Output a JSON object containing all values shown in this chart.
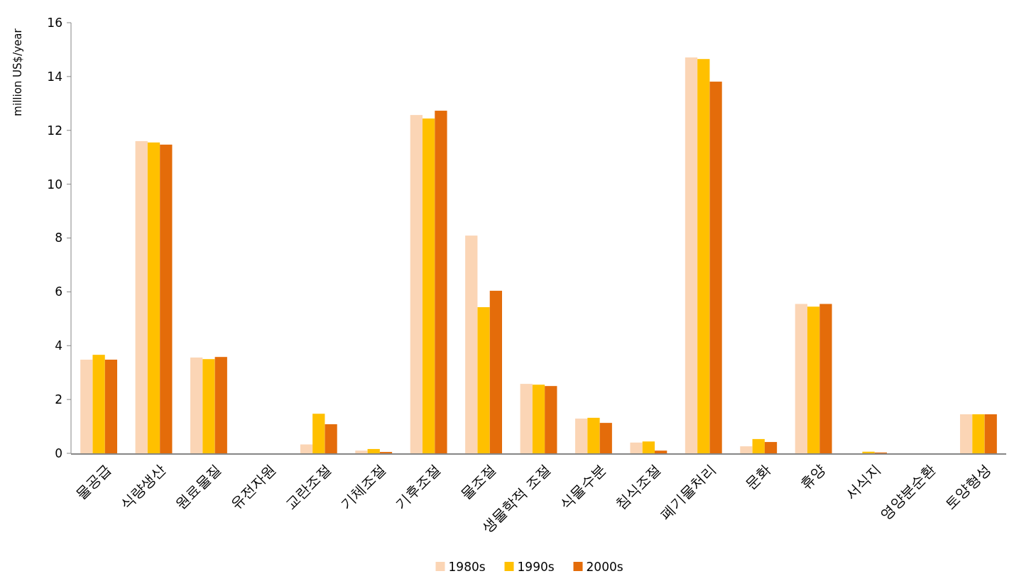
{
  "chart_data": {
    "type": "bar",
    "ylabel": "million US$/year",
    "categories": [
      "물공급",
      "식량생산",
      "원료물질",
      "유전자원",
      "교란조절",
      "기체조절",
      "기후조절",
      "물조절",
      "생물학적 조절",
      "식물수분",
      "침식조절",
      "폐기물처리",
      "문화",
      "휴양",
      "서식지",
      "영양분순환",
      "토양형성"
    ],
    "series": [
      {
        "name": "1980s",
        "color": "#fbd5b5",
        "values": [
          3.48,
          11.6,
          3.56,
          0,
          0.33,
          0.1,
          12.57,
          8.09,
          2.58,
          1.29,
          0.4,
          14.71,
          0.26,
          5.55,
          0,
          0,
          1.45
        ]
      },
      {
        "name": "1990s",
        "color": "#ffc000",
        "values": [
          3.66,
          11.55,
          3.5,
          0,
          1.47,
          0.16,
          12.44,
          5.43,
          2.55,
          1.32,
          0.44,
          14.65,
          0.53,
          5.45,
          0.06,
          0,
          1.45
        ]
      },
      {
        "name": "2000s",
        "color": "#e46c0a",
        "values": [
          3.48,
          11.47,
          3.58,
          0,
          1.08,
          0.05,
          12.73,
          6.04,
          2.5,
          1.13,
          0.1,
          13.81,
          0.42,
          5.55,
          0.03,
          0,
          1.45
        ]
      }
    ],
    "ylim": [
      0,
      16
    ],
    "yticks": [
      0,
      2,
      4,
      6,
      8,
      10,
      12,
      14,
      16
    ],
    "grid": false,
    "legend": "bottom"
  }
}
